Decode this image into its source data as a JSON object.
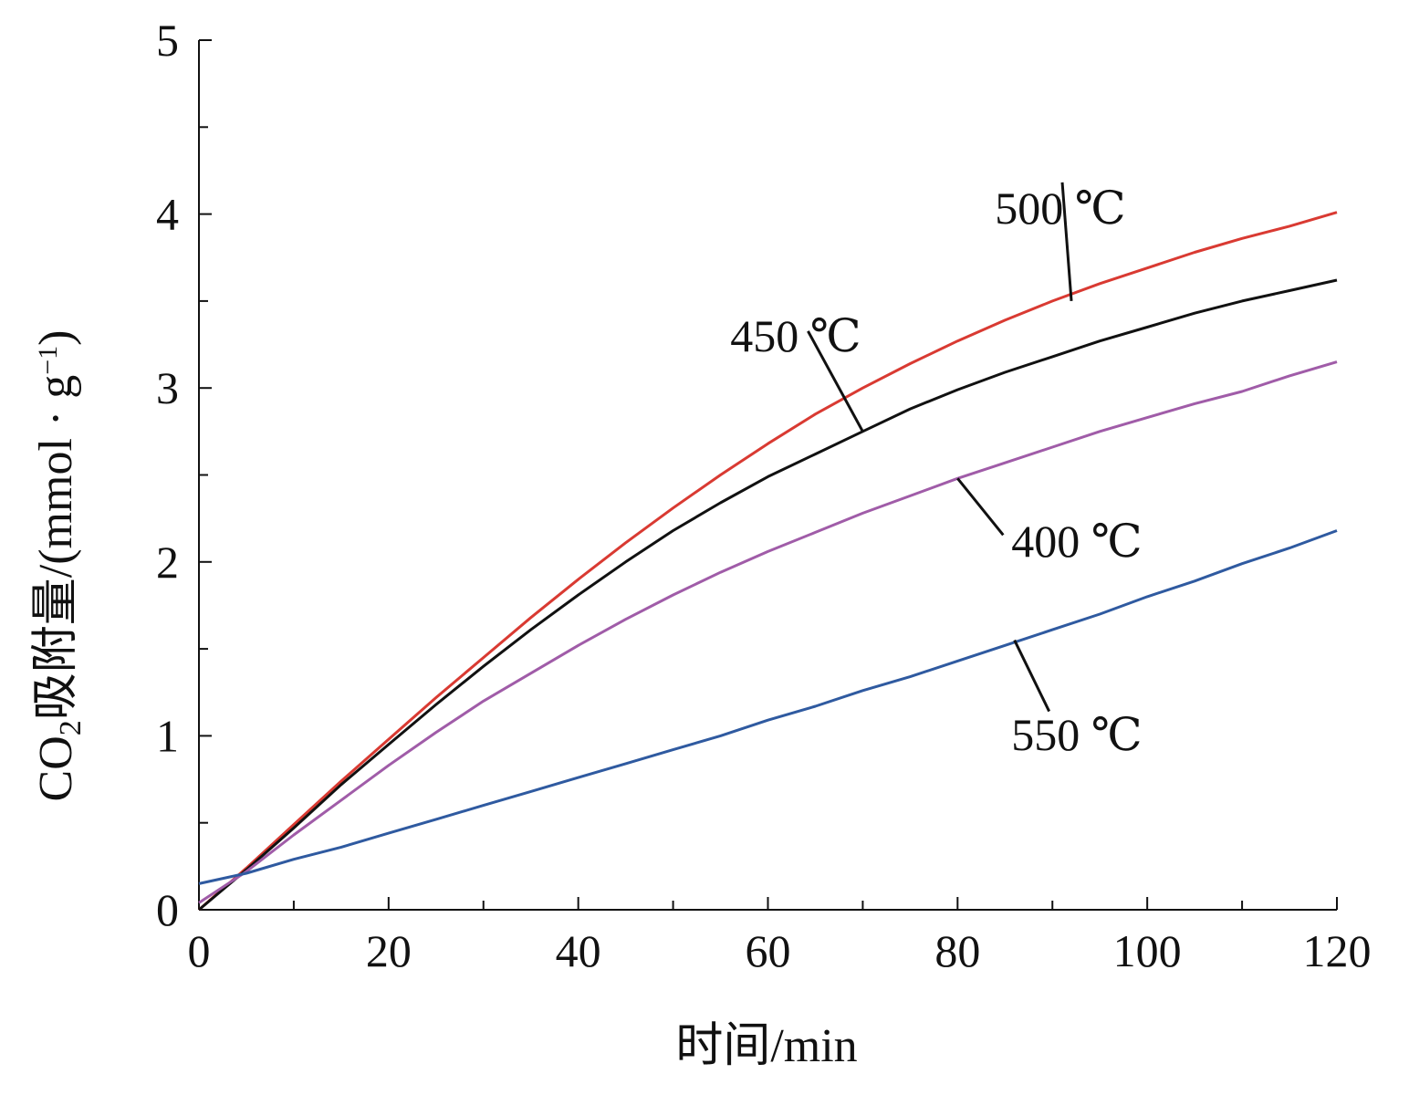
{
  "chart_data": {
    "type": "line",
    "title": "",
    "xlabel": "时间/min",
    "ylabel_main": "CO",
    "ylabel_sub": "2",
    "ylabel_rest": "吸附量/(mmol · g",
    "ylabel_sup": "−1",
    "ylabel_close": ")",
    "xlim": [
      0,
      120
    ],
    "ylim": [
      0,
      5
    ],
    "x_ticks": [
      0,
      20,
      40,
      60,
      80,
      100,
      120
    ],
    "x_tick_labels": [
      "0",
      "20",
      "40",
      "60",
      "80",
      "100",
      "120"
    ],
    "x_minor_step": 10,
    "y_ticks": [
      0,
      1,
      2,
      3,
      4,
      5
    ],
    "y_tick_labels": [
      "0",
      "1",
      "2",
      "3",
      "4",
      "5"
    ],
    "y_minor_step": 0.5,
    "grid": false,
    "legend": "none",
    "series": [
      {
        "name": "500 ℃",
        "color": "#d93a32",
        "x": [
          0,
          5,
          10,
          15,
          20,
          25,
          30,
          35,
          40,
          45,
          50,
          55,
          60,
          65,
          70,
          75,
          80,
          85,
          90,
          95,
          100,
          105,
          110,
          115,
          120
        ],
        "y": [
          0.0,
          0.24,
          0.49,
          0.74,
          0.98,
          1.22,
          1.45,
          1.68,
          1.9,
          2.11,
          2.31,
          2.5,
          2.68,
          2.85,
          3.0,
          3.14,
          3.27,
          3.39,
          3.5,
          3.6,
          3.69,
          3.78,
          3.86,
          3.93,
          4.01
        ]
      },
      {
        "name": "450 ℃",
        "color": "#111111",
        "x": [
          0,
          5,
          10,
          15,
          20,
          25,
          30,
          35,
          40,
          45,
          50,
          55,
          60,
          65,
          70,
          75,
          80,
          85,
          90,
          95,
          100,
          105,
          110,
          115,
          120
        ],
        "y": [
          0.0,
          0.23,
          0.47,
          0.72,
          0.95,
          1.18,
          1.4,
          1.61,
          1.81,
          2.0,
          2.18,
          2.34,
          2.49,
          2.62,
          2.75,
          2.88,
          2.99,
          3.09,
          3.18,
          3.27,
          3.35,
          3.43,
          3.5,
          3.56,
          3.62
        ]
      },
      {
        "name": "400 ℃",
        "color": "#a05ca8",
        "x": [
          0,
          5,
          10,
          15,
          20,
          25,
          30,
          35,
          40,
          45,
          50,
          55,
          60,
          65,
          70,
          75,
          80,
          85,
          90,
          95,
          100,
          105,
          110,
          115,
          120
        ],
        "y": [
          0.04,
          0.22,
          0.43,
          0.63,
          0.83,
          1.02,
          1.2,
          1.36,
          1.52,
          1.67,
          1.81,
          1.94,
          2.06,
          2.17,
          2.28,
          2.38,
          2.48,
          2.57,
          2.66,
          2.75,
          2.83,
          2.91,
          2.98,
          3.07,
          3.15
        ]
      },
      {
        "name": "550 ℃",
        "color": "#2f5aa0",
        "x": [
          0,
          5,
          10,
          15,
          20,
          25,
          30,
          35,
          40,
          45,
          50,
          55,
          60,
          65,
          70,
          75,
          80,
          85,
          90,
          95,
          100,
          105,
          110,
          115,
          120
        ],
        "y": [
          0.15,
          0.21,
          0.29,
          0.36,
          0.44,
          0.52,
          0.6,
          0.68,
          0.76,
          0.84,
          0.92,
          1.0,
          1.09,
          1.17,
          1.26,
          1.34,
          1.43,
          1.52,
          1.61,
          1.7,
          1.8,
          1.89,
          1.99,
          2.08,
          2.18
        ]
      }
    ],
    "annotations": [
      {
        "text": "500 ℃",
        "series": "500 ℃",
        "point_x": 92,
        "point_y": 3.5
      },
      {
        "text": "450 ℃",
        "series": "450 ℃",
        "point_x": 70,
        "point_y": 2.75
      },
      {
        "text": "400 ℃",
        "series": "400 ℃",
        "point_x": 80,
        "point_y": 2.48
      },
      {
        "text": "550 ℃",
        "series": "550 ℃",
        "point_x": 86,
        "point_y": 1.55
      }
    ]
  }
}
